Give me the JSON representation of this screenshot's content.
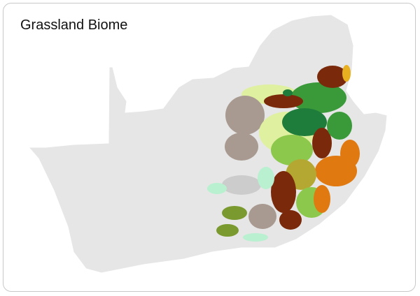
{
  "header": {
    "title": "Grassland Biome"
  }
}
